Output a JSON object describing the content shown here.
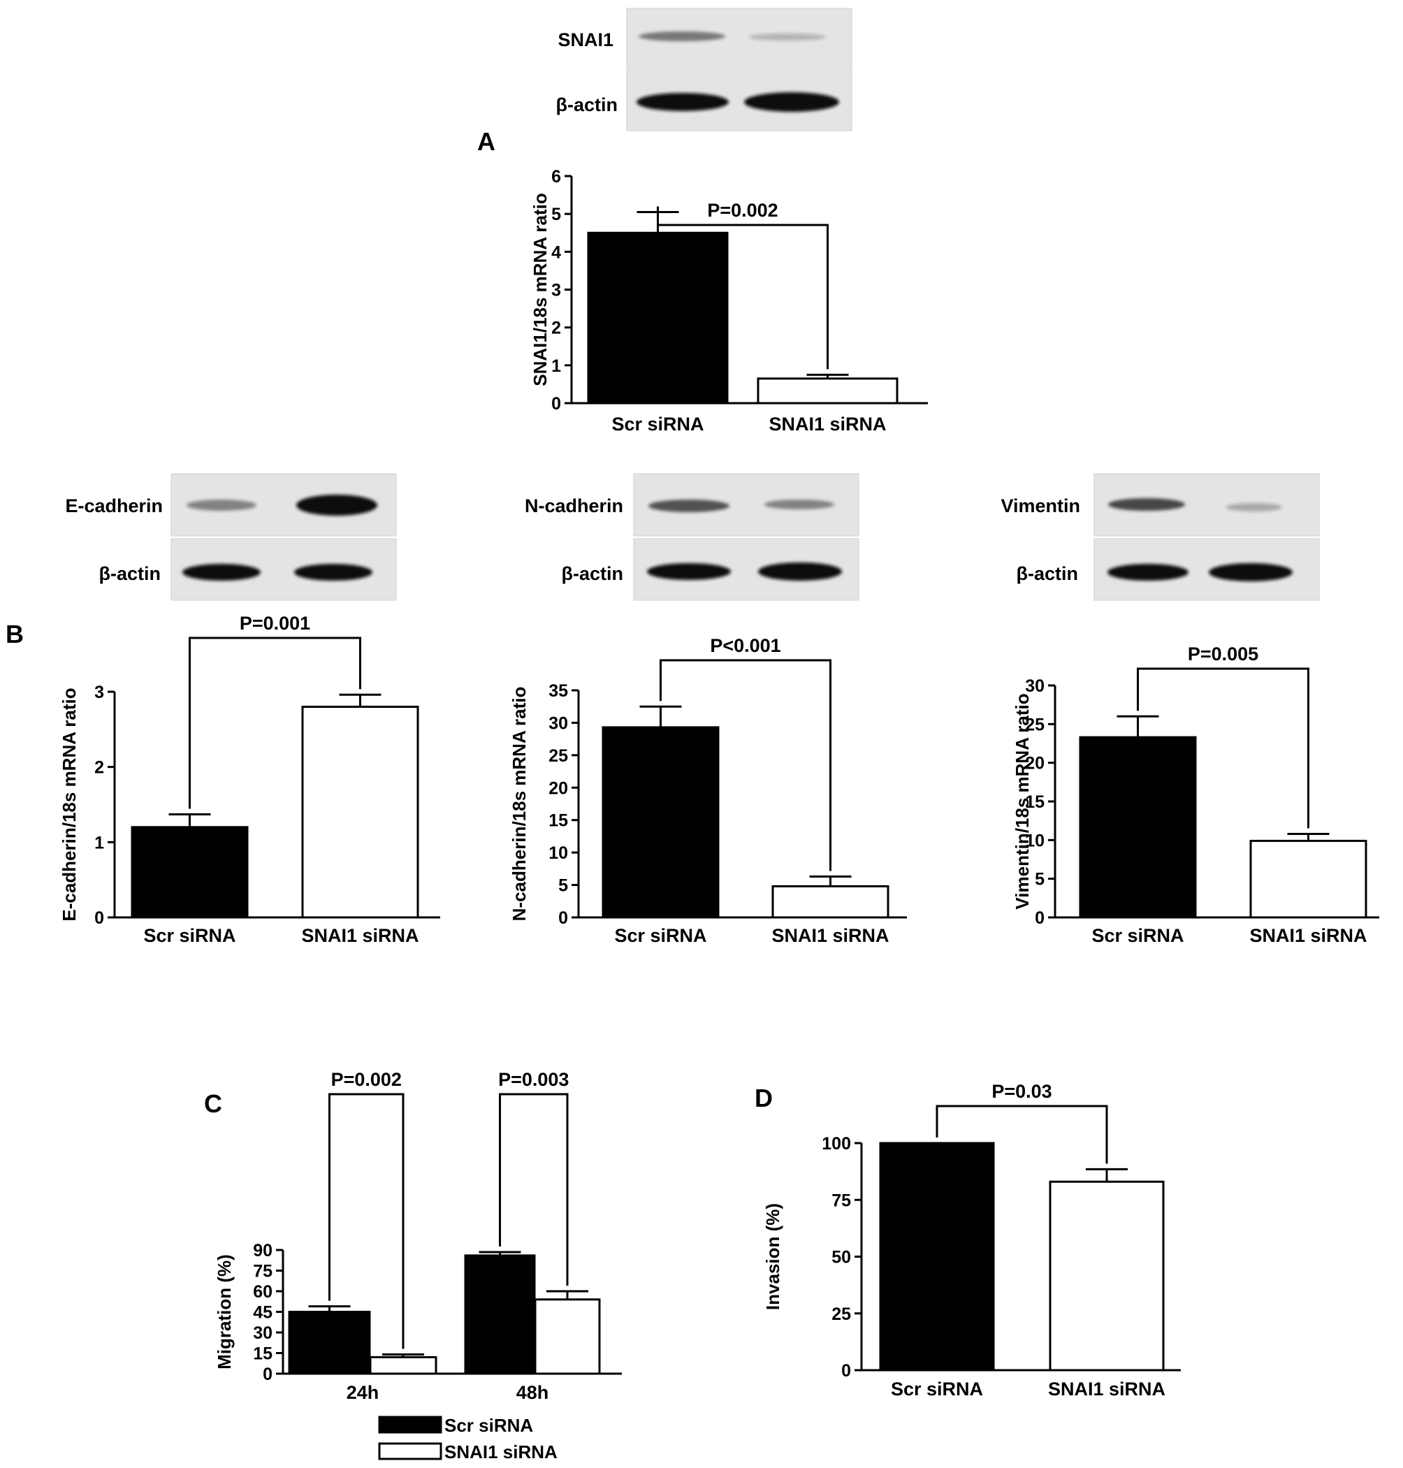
{
  "panel_letters": [
    "A",
    "B",
    "C",
    "D"
  ],
  "blots": [
    {
      "id": "a",
      "labels": [
        "SNAI1",
        "β-actin"
      ],
      "top_band_intensity": [
        0.55,
        0.25
      ]
    },
    {
      "id": "b1",
      "labels": [
        "E-cadherin",
        "β-actin"
      ],
      "top_band_intensity": [
        0.5,
        1.0
      ]
    },
    {
      "id": "b2",
      "labels": [
        "N-cadherin",
        "β-actin"
      ],
      "top_band_intensity": [
        0.75,
        0.5
      ]
    },
    {
      "id": "b3",
      "labels": [
        "Vimentin",
        "β-actin"
      ],
      "top_band_intensity": [
        0.8,
        0.3
      ]
    }
  ],
  "chart_data": [
    {
      "id": "A",
      "type": "bar",
      "categories": [
        "Scr siRNA",
        "SNAI1 siRNA"
      ],
      "values": [
        4.5,
        0.65
      ],
      "errors": [
        0.55,
        0.1
      ],
      "bar_colors": [
        "#000000",
        "#ffffff"
      ],
      "ylabel": "SNAI1/18s mRNA ratio",
      "ylim": [
        0,
        6
      ],
      "yticks": [
        0,
        1,
        2,
        3,
        4,
        5,
        6
      ],
      "annotation": {
        "text": "P=0.002",
        "between": [
          0,
          1
        ]
      }
    },
    {
      "id": "B1",
      "type": "bar",
      "categories": [
        "Scr siRNA",
        "SNAI1 siRNA"
      ],
      "values": [
        1.2,
        2.8
      ],
      "errors": [
        0.17,
        0.16
      ],
      "bar_colors": [
        "#000000",
        "#ffffff"
      ],
      "ylabel": "E-cadherin/18s mRNA ratio",
      "ylim": [
        0,
        3
      ],
      "yticks": [
        0,
        1,
        2,
        3
      ],
      "annotation": {
        "text": "P=0.001",
        "between": [
          0,
          1
        ]
      }
    },
    {
      "id": "B2",
      "type": "bar",
      "categories": [
        "Scr siRNA",
        "SNAI1 siRNA"
      ],
      "values": [
        29.3,
        4.8
      ],
      "errors": [
        3.2,
        1.5
      ],
      "bar_colors": [
        "#000000",
        "#ffffff"
      ],
      "ylabel": "N-cadherin/18s mRNA ratio",
      "ylim": [
        0,
        35
      ],
      "yticks": [
        0,
        5,
        10,
        15,
        20,
        25,
        30,
        35
      ],
      "annotation": {
        "text": "P<0.001",
        "between": [
          0,
          1
        ]
      }
    },
    {
      "id": "B3",
      "type": "bar",
      "categories": [
        "Scr siRNA",
        "SNAI1 siRNA"
      ],
      "values": [
        23.3,
        9.9
      ],
      "errors": [
        2.7,
        0.9
      ],
      "bar_colors": [
        "#000000",
        "#ffffff"
      ],
      "ylabel": "Vimentin/18s mRNA ratio",
      "ylim": [
        0,
        30
      ],
      "yticks": [
        0,
        5,
        10,
        15,
        20,
        25,
        30
      ],
      "annotation": {
        "text": "P=0.005",
        "between": [
          0,
          1
        ]
      }
    },
    {
      "id": "C",
      "type": "bar",
      "categories": [
        "24h",
        "48h"
      ],
      "series": [
        {
          "name": "Scr siRNA",
          "color": "#000000",
          "values": [
            45,
            86
          ],
          "errors": [
            4,
            2.5
          ]
        },
        {
          "name": "SNAI1 siRNA",
          "color": "#ffffff",
          "values": [
            12,
            54
          ],
          "errors": [
            2,
            6
          ]
        }
      ],
      "ylabel": "Migration (%)",
      "ylim": [
        0,
        90
      ],
      "yticks": [
        0,
        15,
        30,
        45,
        60,
        75,
        90
      ],
      "annotations": [
        {
          "text": "P=0.002",
          "category": 0
        },
        {
          "text": "P=0.003",
          "category": 1
        }
      ],
      "legend": "bottom"
    },
    {
      "id": "D",
      "type": "bar",
      "categories": [
        "Scr siRNA",
        "SNAI1 siRNA"
      ],
      "values": [
        100,
        83
      ],
      "errors": [
        0,
        5.5
      ],
      "bar_colors": [
        "#000000",
        "#ffffff"
      ],
      "ylabel": "Invasion (%)",
      "ylim": [
        0,
        100
      ],
      "yticks": [
        0,
        25,
        50,
        75,
        100
      ],
      "annotation": {
        "text": "P=0.03",
        "between": [
          0,
          1
        ]
      }
    }
  ]
}
